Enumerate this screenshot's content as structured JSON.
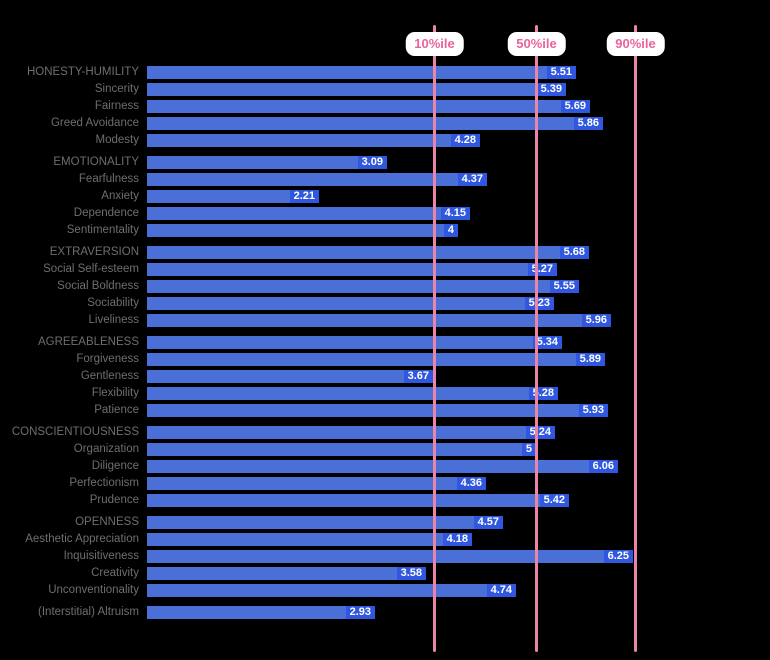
{
  "chart_data": {
    "type": "bar",
    "orientation": "horizontal",
    "title": "",
    "xlabel": "",
    "ylabel": "",
    "value_scale": {
      "min": 0,
      "max": 7
    },
    "grid": false,
    "legend": false,
    "groups": [
      {
        "rows": [
          {
            "label": "HONESTY-HUMILITY",
            "value": 5.51,
            "display": "5.51"
          },
          {
            "label": "Sincerity",
            "value": 5.39,
            "display": "5.39"
          },
          {
            "label": "Fairness",
            "value": 5.69,
            "display": "5.69"
          },
          {
            "label": "Greed Avoidance",
            "value": 5.86,
            "display": "5.86"
          },
          {
            "label": "Modesty",
            "value": 4.28,
            "display": "4.28"
          }
        ]
      },
      {
        "rows": [
          {
            "label": "EMOTIONALITY",
            "value": 3.09,
            "display": "3.09"
          },
          {
            "label": "Fearfulness",
            "value": 4.37,
            "display": "4.37"
          },
          {
            "label": "Anxiety",
            "value": 2.21,
            "display": "2.21"
          },
          {
            "label": "Dependence",
            "value": 4.15,
            "display": "4.15"
          },
          {
            "label": "Sentimentality",
            "value": 4,
            "display": "4"
          }
        ]
      },
      {
        "rows": [
          {
            "label": "EXTRAVERSION",
            "value": 5.68,
            "display": "5.68"
          },
          {
            "label": "Social Self-esteem",
            "value": 5.27,
            "display": "5.27"
          },
          {
            "label": "Social Boldness",
            "value": 5.55,
            "display": "5.55"
          },
          {
            "label": "Sociability",
            "value": 5.23,
            "display": "5.23"
          },
          {
            "label": "Liveliness",
            "value": 5.96,
            "display": "5.96"
          }
        ]
      },
      {
        "rows": [
          {
            "label": "AGREEABLENESS",
            "value": 5.34,
            "display": "5.34"
          },
          {
            "label": "Forgiveness",
            "value": 5.89,
            "display": "5.89"
          },
          {
            "label": "Gentleness",
            "value": 3.67,
            "display": "3.67"
          },
          {
            "label": "Flexibility",
            "value": 5.28,
            "display": "5.28"
          },
          {
            "label": "Patience",
            "value": 5.93,
            "display": "5.93"
          }
        ]
      },
      {
        "rows": [
          {
            "label": "CONSCIENTIOUSNESS",
            "value": 5.24,
            "display": "5.24"
          },
          {
            "label": "Organization",
            "value": 5,
            "display": "5"
          },
          {
            "label": "Diligence",
            "value": 6.06,
            "display": "6.06"
          },
          {
            "label": "Perfectionism",
            "value": 4.36,
            "display": "4.36"
          },
          {
            "label": "Prudence",
            "value": 5.42,
            "display": "5.42"
          }
        ]
      },
      {
        "rows": [
          {
            "label": "OPENNESS",
            "value": 4.57,
            "display": "4.57"
          },
          {
            "label": "Aesthetic Appreciation",
            "value": 4.18,
            "display": "4.18"
          },
          {
            "label": "Inquisitiveness",
            "value": 6.25,
            "display": "6.25"
          },
          {
            "label": "Creativity",
            "value": 3.58,
            "display": "3.58"
          },
          {
            "label": "Unconventionality",
            "value": 4.74,
            "display": "4.74"
          }
        ]
      },
      {
        "rows": [
          {
            "label": "(Interstitial) Altruism",
            "value": 2.93,
            "display": "2.93"
          }
        ]
      }
    ],
    "percentile_lines": [
      {
        "label": "10%ile",
        "value": 3.69
      },
      {
        "label": "50%ile",
        "value": 5.0
      },
      {
        "label": "90%ile",
        "value": 6.28
      }
    ],
    "colors": {
      "background": "#000000",
      "bar": "#4a6fd6",
      "value_label_bg": "#2f57df",
      "value_label_text": "#ffffff",
      "row_label_text": "#6e6e6e",
      "percentile_line": "#ec84a6",
      "percentile_text": "#e8639b",
      "badge_bg": "#ffffff"
    }
  }
}
